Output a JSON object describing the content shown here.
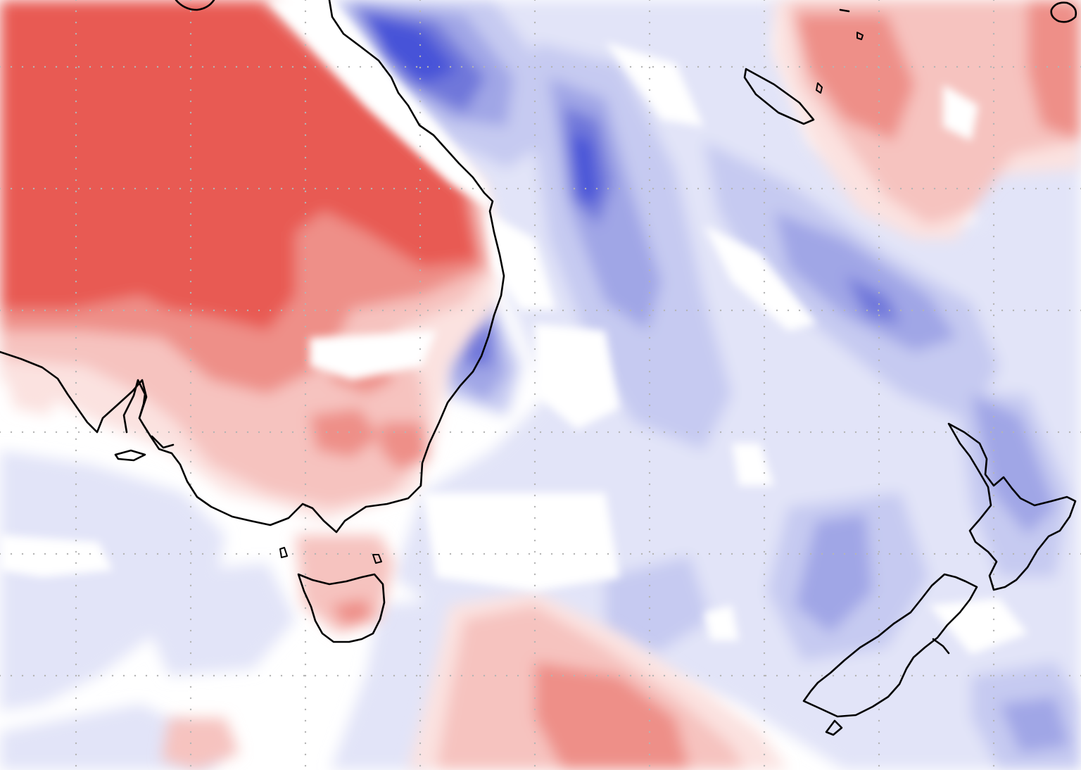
{
  "map": {
    "region": "south-east-australia-tasman-sea-new-zealand",
    "colors": {
      "warm_strong": "#e85a52",
      "warm_medium": "#ee8f88",
      "warm_light": "#f6c3bf",
      "warm_faint": "#fbe2e0",
      "cool_faint": "#e2e4f8",
      "cool_light": "#c6caf1",
      "cool_medium": "#a0a6e6",
      "cool_strong": "#6f77da",
      "cool_deep": "#4752d8",
      "neutral": "#ffffff",
      "coastline": "#000000",
      "grid_dot": "#b4b4b4"
    },
    "grid": {
      "shown": true,
      "style": "dotted"
    },
    "landmasses": [
      "australia-coast",
      "tasmania",
      "new-zealand-north-island",
      "new-zealand-south-island",
      "new-caledonia"
    ]
  }
}
